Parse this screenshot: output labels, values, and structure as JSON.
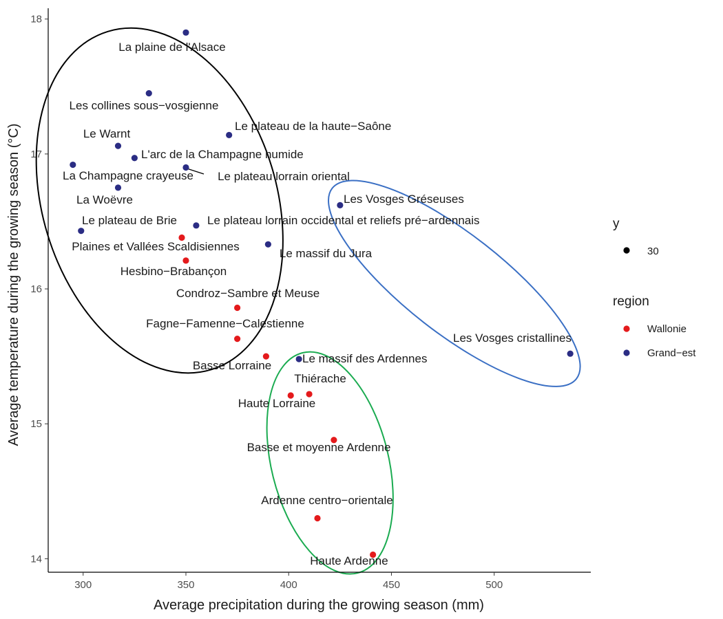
{
  "chart_data": {
    "type": "scatter",
    "title": "",
    "xlabel": "Average precipitation during the growing season (mm)",
    "ylabel": "Average temperature during the growing season (°C)",
    "xlim": [
      283,
      547
    ],
    "ylim": [
      13.9,
      18.08
    ],
    "xticks": [
      300,
      350,
      400,
      450,
      500
    ],
    "yticks": [
      14,
      15,
      16,
      17,
      18
    ],
    "grid": false,
    "legend": {
      "position": "right",
      "size_title": "y",
      "size_value": "30",
      "color_title": "region",
      "entries": [
        {
          "label": "Wallonie",
          "color": "#e41a1c"
        },
        {
          "label": "Grand−est",
          "color": "#2b2d84"
        }
      ]
    },
    "colors": {
      "Wallonie": "#e41a1c",
      "Grand-est": "#2b2d84"
    },
    "points": [
      {
        "label": "La plaine de l'Alsace",
        "x": 350,
        "y": 17.9,
        "region": "Grand-est"
      },
      {
        "label": "Les collines sous−vosgienne",
        "x": 332,
        "y": 17.45,
        "region": "Grand-est"
      },
      {
        "label": "Le plateau de la haute−Saône",
        "x": 371,
        "y": 17.14,
        "region": "Grand-est"
      },
      {
        "label": "Le Warnt",
        "x": 317,
        "y": 17.06,
        "region": "Grand-est"
      },
      {
        "label": "L'arc de la Champagne humide",
        "x": 325,
        "y": 16.97,
        "region": "Grand-est"
      },
      {
        "label": "La Champagne crayeuse",
        "x": 295,
        "y": 16.92,
        "region": "Grand-est"
      },
      {
        "label": "Le plateau lorrain oriental",
        "x": 350,
        "y": 16.9,
        "region": "Grand-est"
      },
      {
        "label": "La Woëvre",
        "x": 317,
        "y": 16.75,
        "region": "Grand-est"
      },
      {
        "label": "Les Vosges Gréseuses",
        "x": 425,
        "y": 16.62,
        "region": "Grand-est"
      },
      {
        "label": "Le plateau de Brie",
        "x": 299,
        "y": 16.43,
        "region": "Grand-est"
      },
      {
        "label": "Le plateau lorrain occidental et reliefs pré−ardennais",
        "x": 355,
        "y": 16.47,
        "region": "Grand-est"
      },
      {
        "label": "Plaines et Vallées Scaldisiennes",
        "x": 348,
        "y": 16.38,
        "region": "Wallonie"
      },
      {
        "label": "Le massif du Jura",
        "x": 390,
        "y": 16.33,
        "region": "Grand-est"
      },
      {
        "label": "Hesbino−Brabançon",
        "x": 350,
        "y": 16.21,
        "region": "Wallonie"
      },
      {
        "label": "Condroz−Sambre et Meuse",
        "x": 375,
        "y": 15.86,
        "region": "Wallonie"
      },
      {
        "label": "Fagne−Famenne−Calestienne",
        "x": 375,
        "y": 15.63,
        "region": "Wallonie"
      },
      {
        "label": "Les Vosges cristallines",
        "x": 537,
        "y": 15.52,
        "region": "Grand-est"
      },
      {
        "label": "Basse Lorraine",
        "x": 389,
        "y": 15.5,
        "region": "Wallonie"
      },
      {
        "label": "Le massif des Ardennes",
        "x": 405,
        "y": 15.48,
        "region": "Grand-est"
      },
      {
        "label": "Thiérache",
        "x": 410,
        "y": 15.22,
        "region": "Wallonie"
      },
      {
        "label": "Haute Lorraine",
        "x": 401,
        "y": 15.21,
        "region": "Wallonie"
      },
      {
        "label": "Basse et moyenne Ardenne",
        "x": 422,
        "y": 14.88,
        "region": "Wallonie"
      },
      {
        "label": "Ardenne centro−orientale",
        "x": 414,
        "y": 14.3,
        "region": "Wallonie"
      },
      {
        "label": "Haute Ardenne",
        "x": 441,
        "y": 14.03,
        "region": "Wallonie"
      }
    ],
    "ellipses": [
      {
        "color": "#000000",
        "cx": 337.2,
        "cy": 16.655,
        "rx": 45.7,
        "ry": 1.315
      },
      {
        "color": "#3a6fc4",
        "cx": 480.6,
        "cy": 16.04,
        "rx": 85.6,
        "ry": 0.475
      },
      {
        "color": "#1aab50",
        "cx": 420.1,
        "cy": 14.71,
        "rx": 25.2,
        "ry": 0.83
      }
    ]
  }
}
